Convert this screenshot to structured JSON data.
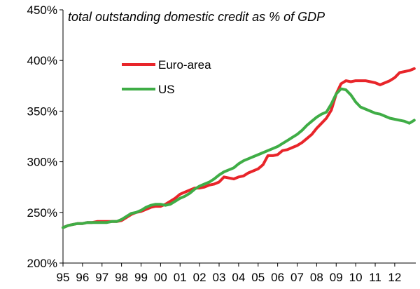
{
  "chart_data": {
    "type": "line",
    "title": "total outstanding domestic credit as % of GDP",
    "xlabel": "",
    "ylabel": "",
    "ylim": [
      200,
      450
    ],
    "xlim": [
      1995.0,
      2013.08
    ],
    "y_ticks": [
      200,
      250,
      300,
      350,
      400,
      450
    ],
    "y_tick_labels": [
      "200%",
      "250%",
      "300%",
      "350%",
      "400%",
      "450%"
    ],
    "x_tick_labels": [
      "95",
      "96",
      "97",
      "98",
      "99",
      "00",
      "01",
      "02",
      "03",
      "04",
      "05",
      "06",
      "07",
      "08",
      "09",
      "10",
      "11",
      "12"
    ],
    "x_tick_positions": [
      1995,
      1996,
      1997,
      1998,
      1999,
      2000,
      2001,
      2002,
      2003,
      2004,
      2005,
      2006,
      2007,
      2008,
      2009,
      2010,
      2011,
      2012
    ],
    "grid": false,
    "legend_position": "upper-left",
    "series": [
      {
        "name": "Euro-area",
        "color": "#e8252a",
        "points": [
          [
            1995.0,
            235
          ],
          [
            1995.25,
            237
          ],
          [
            1995.5,
            238
          ],
          [
            1995.75,
            239
          ],
          [
            1996.0,
            239
          ],
          [
            1996.25,
            240
          ],
          [
            1996.5,
            240
          ],
          [
            1996.75,
            241
          ],
          [
            1997.0,
            241
          ],
          [
            1997.25,
            241
          ],
          [
            1997.5,
            241
          ],
          [
            1997.75,
            241
          ],
          [
            1998.0,
            242
          ],
          [
            1998.25,
            245
          ],
          [
            1998.5,
            248
          ],
          [
            1998.75,
            250
          ],
          [
            1999.0,
            251
          ],
          [
            1999.25,
            253
          ],
          [
            1999.5,
            255
          ],
          [
            1999.75,
            256
          ],
          [
            2000.0,
            256
          ],
          [
            2000.25,
            258
          ],
          [
            2000.5,
            261
          ],
          [
            2000.75,
            264
          ],
          [
            2001.0,
            268
          ],
          [
            2001.25,
            270
          ],
          [
            2001.5,
            272
          ],
          [
            2001.75,
            274
          ],
          [
            2002.0,
            274
          ],
          [
            2002.25,
            275
          ],
          [
            2002.5,
            277
          ],
          [
            2002.75,
            278
          ],
          [
            2003.0,
            280
          ],
          [
            2003.25,
            285
          ],
          [
            2003.5,
            284
          ],
          [
            2003.75,
            283
          ],
          [
            2004.0,
            285
          ],
          [
            2004.25,
            286
          ],
          [
            2004.5,
            289
          ],
          [
            2004.75,
            291
          ],
          [
            2005.0,
            293
          ],
          [
            2005.25,
            297
          ],
          [
            2005.5,
            306
          ],
          [
            2005.75,
            306
          ],
          [
            2006.0,
            307
          ],
          [
            2006.25,
            311
          ],
          [
            2006.5,
            312
          ],
          [
            2006.75,
            314
          ],
          [
            2007.0,
            316
          ],
          [
            2007.25,
            319
          ],
          [
            2007.5,
            323
          ],
          [
            2007.75,
            327
          ],
          [
            2008.0,
            333
          ],
          [
            2008.25,
            338
          ],
          [
            2008.5,
            343
          ],
          [
            2008.75,
            351
          ],
          [
            2009.0,
            367
          ],
          [
            2009.25,
            377
          ],
          [
            2009.5,
            380
          ],
          [
            2009.75,
            379
          ],
          [
            2010.0,
            380
          ],
          [
            2010.25,
            380
          ],
          [
            2010.5,
            380
          ],
          [
            2010.75,
            379
          ],
          [
            2011.0,
            378
          ],
          [
            2011.25,
            376
          ],
          [
            2011.5,
            378
          ],
          [
            2011.75,
            380
          ],
          [
            2012.0,
            383
          ],
          [
            2012.25,
            388
          ],
          [
            2012.5,
            389
          ],
          [
            2012.75,
            390
          ],
          [
            2013.0,
            392
          ]
        ]
      },
      {
        "name": "US",
        "color": "#3fad46",
        "points": [
          [
            1995.0,
            235
          ],
          [
            1995.25,
            237
          ],
          [
            1995.5,
            238
          ],
          [
            1995.75,
            239
          ],
          [
            1996.0,
            239
          ],
          [
            1996.25,
            240
          ],
          [
            1996.5,
            240
          ],
          [
            1996.75,
            240
          ],
          [
            1997.0,
            240
          ],
          [
            1997.25,
            240
          ],
          [
            1997.5,
            241
          ],
          [
            1997.75,
            241
          ],
          [
            1998.0,
            243
          ],
          [
            1998.25,
            246
          ],
          [
            1998.5,
            249
          ],
          [
            1998.75,
            250
          ],
          [
            1999.0,
            252
          ],
          [
            1999.25,
            255
          ],
          [
            1999.5,
            257
          ],
          [
            1999.75,
            258
          ],
          [
            2000.0,
            258
          ],
          [
            2000.25,
            257
          ],
          [
            2000.5,
            258
          ],
          [
            2000.75,
            261
          ],
          [
            2001.0,
            264
          ],
          [
            2001.25,
            266
          ],
          [
            2001.5,
            269
          ],
          [
            2001.75,
            273
          ],
          [
            2002.0,
            276
          ],
          [
            2002.25,
            278
          ],
          [
            2002.5,
            280
          ],
          [
            2002.75,
            283
          ],
          [
            2003.0,
            287
          ],
          [
            2003.25,
            290
          ],
          [
            2003.5,
            292
          ],
          [
            2003.75,
            294
          ],
          [
            2004.0,
            298
          ],
          [
            2004.25,
            301
          ],
          [
            2004.5,
            303
          ],
          [
            2004.75,
            305
          ],
          [
            2005.0,
            307
          ],
          [
            2005.25,
            309
          ],
          [
            2005.5,
            311
          ],
          [
            2005.75,
            313
          ],
          [
            2006.0,
            315
          ],
          [
            2006.25,
            318
          ],
          [
            2006.5,
            321
          ],
          [
            2006.75,
            324
          ],
          [
            2007.0,
            327
          ],
          [
            2007.25,
            331
          ],
          [
            2007.5,
            336
          ],
          [
            2007.75,
            340
          ],
          [
            2008.0,
            344
          ],
          [
            2008.25,
            347
          ],
          [
            2008.5,
            349
          ],
          [
            2008.75,
            357
          ],
          [
            2009.0,
            367
          ],
          [
            2009.25,
            372
          ],
          [
            2009.5,
            371
          ],
          [
            2009.75,
            366
          ],
          [
            2010.0,
            359
          ],
          [
            2010.25,
            354
          ],
          [
            2010.5,
            352
          ],
          [
            2010.75,
            350
          ],
          [
            2011.0,
            348
          ],
          [
            2011.25,
            347
          ],
          [
            2011.5,
            345
          ],
          [
            2011.75,
            343
          ],
          [
            2012.0,
            342
          ],
          [
            2012.25,
            341
          ],
          [
            2012.5,
            340
          ],
          [
            2012.75,
            338
          ],
          [
            2013.0,
            341
          ]
        ]
      }
    ]
  }
}
